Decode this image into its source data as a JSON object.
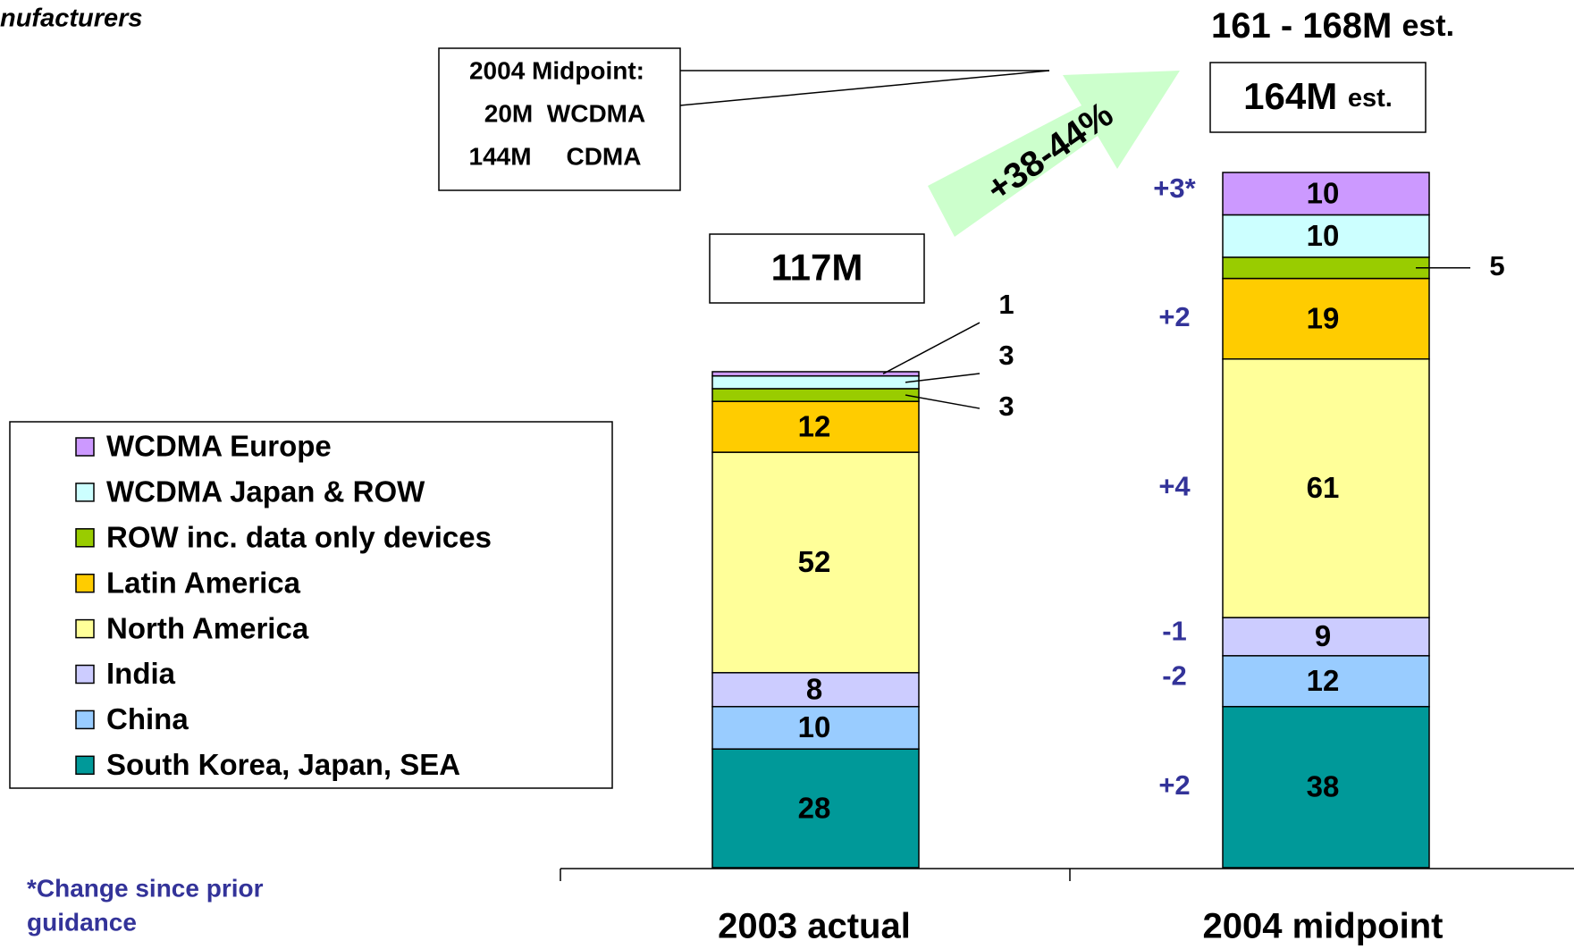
{
  "header_fragment": "nufacturers",
  "chart_data": {
    "type": "bar",
    "stacked": true,
    "categories": [
      "2003 actual",
      "2004 midpoint"
    ],
    "series": [
      {
        "name": "South Korea, Japan, SEA",
        "color": "#009999",
        "values": [
          28,
          38
        ],
        "change": [
          null,
          "+2"
        ]
      },
      {
        "name": "China",
        "color": "#99ccff",
        "values": [
          10,
          12
        ],
        "change": [
          null,
          "-2"
        ]
      },
      {
        "name": "India",
        "color": "#ccccff",
        "values": [
          8,
          9
        ],
        "change": [
          null,
          "-1"
        ]
      },
      {
        "name": "North America",
        "color": "#ffff99",
        "values": [
          52,
          61
        ],
        "change": [
          null,
          "+4"
        ]
      },
      {
        "name": "Latin America",
        "color": "#ffcc00",
        "values": [
          12,
          19
        ],
        "change": [
          null,
          "+2"
        ]
      },
      {
        "name": "ROW inc. data only devices",
        "color": "#99cc00",
        "values": [
          3,
          5
        ],
        "change": [
          null,
          null
        ]
      },
      {
        "name": "WCDMA Japan & ROW",
        "color": "#ccffff",
        "values": [
          3,
          10
        ],
        "change": [
          null,
          null
        ]
      },
      {
        "name": "WCDMA Europe",
        "color": "#cc99ff",
        "values": [
          1,
          10
        ],
        "change": [
          null,
          "+3*"
        ]
      }
    ],
    "totals": [
      {
        "value": "117M"
      },
      {
        "value": "164M",
        "suffix": "est."
      }
    ],
    "range_label": {
      "value": "161 - 168M",
      "suffix": "est."
    },
    "growth_label": "+38-44%",
    "midpoint_box": [
      "2004 Midpoint:",
      "20M  WCDMA",
      "144M     CDMA"
    ],
    "footnote": [
      "*Change since prior",
      "guidance"
    ]
  }
}
